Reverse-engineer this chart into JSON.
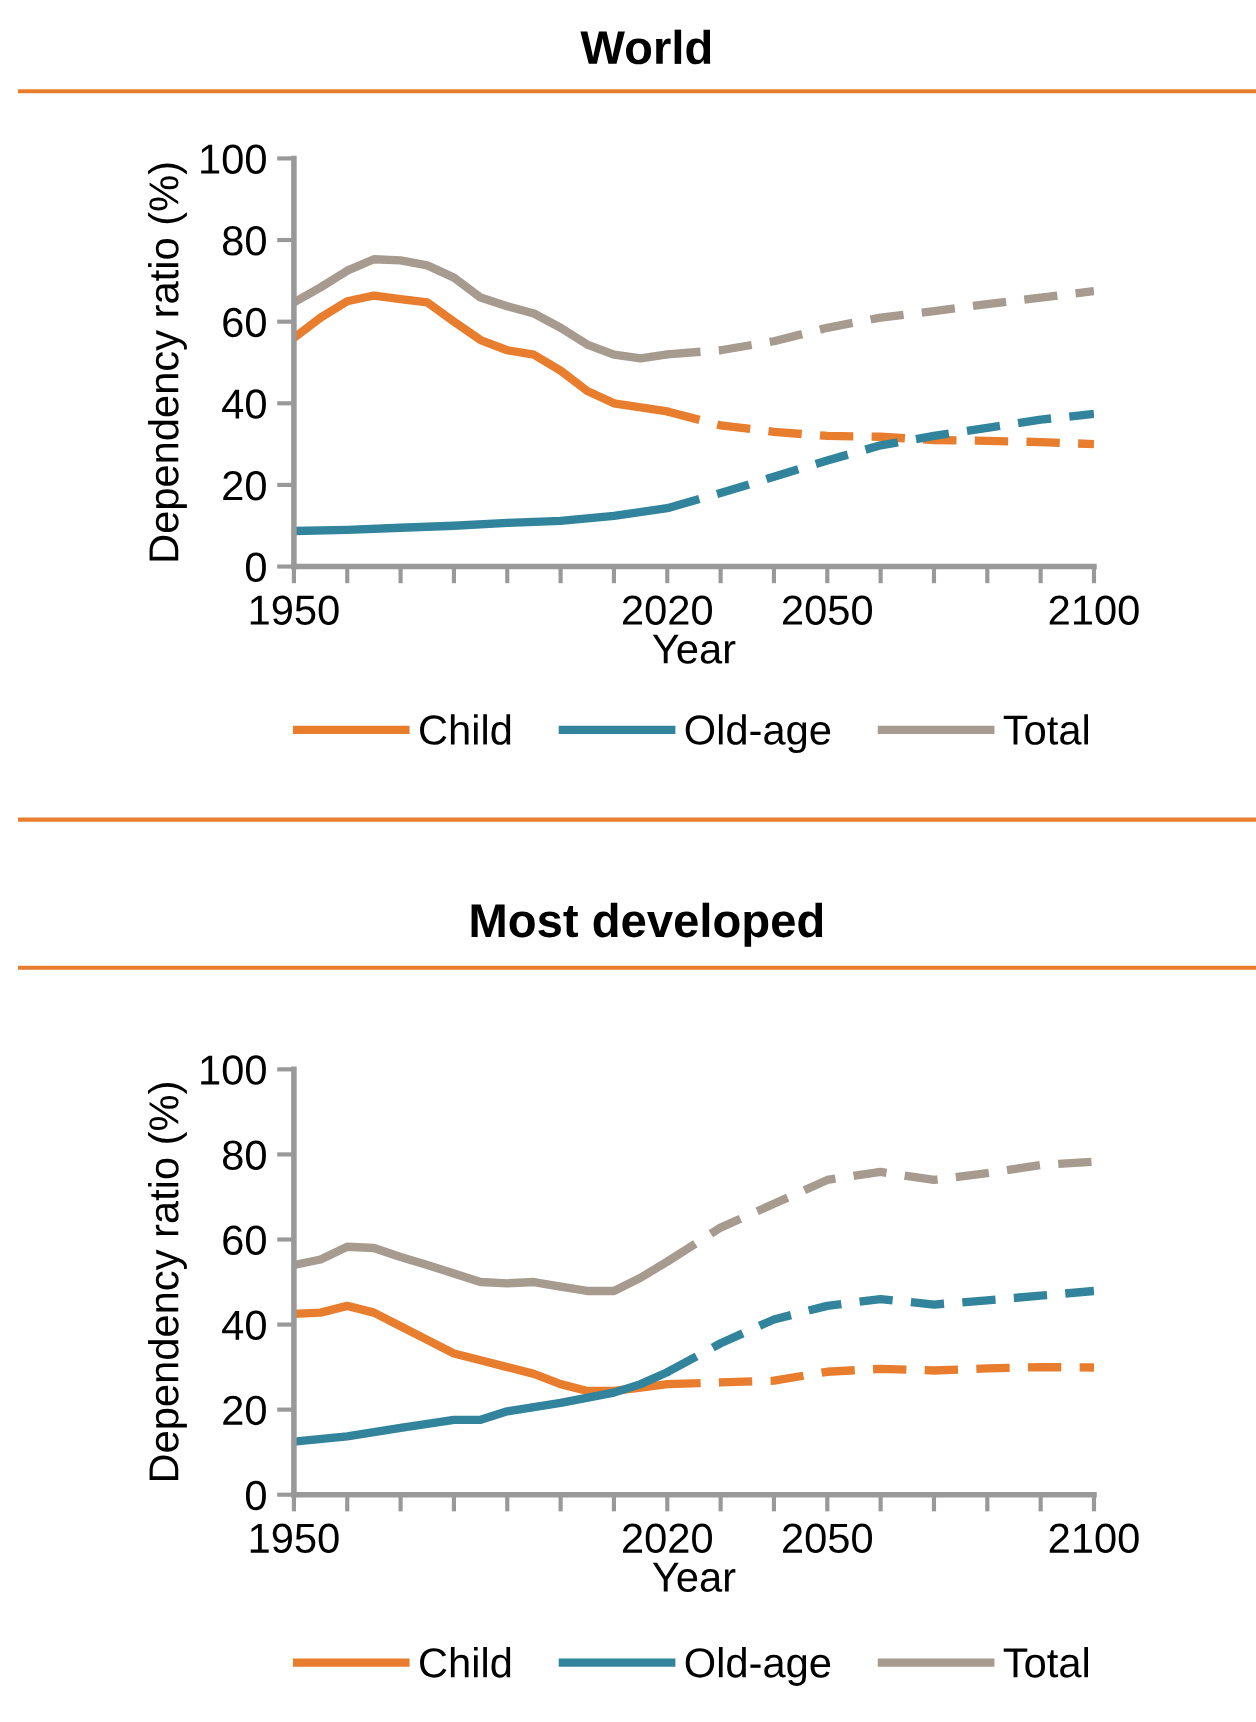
{
  "chart_data": [
    {
      "type": "line",
      "title": "World",
      "xlabel": "Year",
      "ylabel": "Dependency ratio (%)",
      "xlim": [
        1950,
        2100
      ],
      "xticks": [
        1950,
        {
          "value": 1960,
          "label": null
        },
        {
          "value": 1970,
          "label": null
        },
        {
          "value": 1980,
          "label": null
        },
        {
          "value": 1990,
          "label": null
        },
        {
          "value": 2000,
          "label": null
        },
        {
          "value": 2010,
          "label": null
        },
        2020,
        {
          "value": 2030,
          "label": null
        },
        {
          "value": 2040,
          "label": null
        },
        2050,
        {
          "value": 2060,
          "label": null
        },
        {
          "value": 2070,
          "label": null
        },
        {
          "value": 2080,
          "label": null
        },
        {
          "value": 2090,
          "label": null
        },
        2100
      ],
      "ylim": [
        0,
        100
      ],
      "yticks": [
        0,
        20,
        40,
        60,
        80,
        100
      ],
      "grid": false,
      "legend": "bottom",
      "marker": "none",
      "series": [
        {
          "name": "Child",
          "color": "#e87d2e",
          "line_style": "solid",
          "x": [
            1950,
            1955,
            1960,
            1965,
            1970,
            1975,
            1980,
            1985,
            1990,
            1995,
            2000,
            2005,
            2010,
            2015,
            2020
          ],
          "values": [
            56,
            61,
            65,
            66.4,
            65.5,
            64.7,
            60,
            55.5,
            53,
            51.9,
            48,
            43,
            40,
            39,
            38
          ]
        },
        {
          "color": "#e87d2e",
          "line_style": "dashed",
          "x": [
            2020,
            2030,
            2040,
            2050,
            2060,
            2070,
            2080,
            2090,
            2100
          ],
          "values": [
            38,
            34.6,
            33,
            32,
            31.8,
            31,
            30.8,
            30.5,
            30
          ]
        },
        {
          "name": "Old-age",
          "color": "#31849b",
          "line_style": "solid",
          "x": [
            1950,
            1960,
            1970,
            1980,
            1990,
            2000,
            2010,
            2020
          ],
          "values": [
            8.7,
            9,
            9.5,
            10,
            10.7,
            11.2,
            12.4,
            14.3
          ]
        },
        {
          "color": "#31849b",
          "line_style": "dashed",
          "x": [
            2020,
            2030,
            2040,
            2050,
            2060,
            2070,
            2080,
            2090,
            2100
          ],
          "values": [
            14.3,
            18,
            22,
            26,
            29.7,
            32,
            34,
            36,
            37.4
          ]
        },
        {
          "name": "Total",
          "color": "#a69b8e",
          "line_style": "solid",
          "x": [
            1950,
            1955,
            1960,
            1965,
            1970,
            1975,
            1980,
            1985,
            1990,
            1995,
            2000,
            2005,
            2010,
            2015,
            2020
          ],
          "values": [
            64.7,
            68.4,
            72.5,
            75.3,
            75,
            73.8,
            70.8,
            65.9,
            63.8,
            62,
            58.5,
            54.4,
            51.9,
            51,
            52
          ]
        },
        {
          "color": "#a69b8e",
          "line_style": "dashed",
          "x": [
            2020,
            2030,
            2040,
            2050,
            2060,
            2070,
            2080,
            2090,
            2100
          ],
          "values": [
            52,
            53,
            55.2,
            58.5,
            61,
            62.6,
            64.3,
            65.9,
            67.5
          ]
        }
      ]
    },
    {
      "type": "line",
      "title": "Most developed",
      "xlabel": "Year",
      "ylabel": "Dependency ratio (%)",
      "xlim": [
        1950,
        2100
      ],
      "xticks": [
        1950,
        {
          "value": 1960,
          "label": null
        },
        {
          "value": 1970,
          "label": null
        },
        {
          "value": 1980,
          "label": null
        },
        {
          "value": 1990,
          "label": null
        },
        {
          "value": 2000,
          "label": null
        },
        {
          "value": 2010,
          "label": null
        },
        2020,
        {
          "value": 2030,
          "label": null
        },
        {
          "value": 2040,
          "label": null
        },
        2050,
        {
          "value": 2060,
          "label": null
        },
        {
          "value": 2070,
          "label": null
        },
        {
          "value": 2080,
          "label": null
        },
        {
          "value": 2090,
          "label": null
        },
        2100
      ],
      "ylim": [
        0,
        100
      ],
      "yticks": [
        0,
        20,
        40,
        60,
        80,
        100
      ],
      "grid": false,
      "legend": "bottom",
      "marker": "none",
      "series": [
        {
          "name": "Child",
          "color": "#e87d2e",
          "line_style": "solid",
          "x": [
            1950,
            1955,
            1960,
            1965,
            1970,
            1975,
            1980,
            1985,
            1990,
            1995,
            2000,
            2005,
            2010,
            2015,
            2020
          ],
          "values": [
            42.5,
            42.8,
            44.4,
            42.8,
            39.6,
            36.4,
            33.2,
            31.6,
            30,
            28.4,
            26,
            24.4,
            24.4,
            25.2,
            26
          ]
        },
        {
          "color": "#e87d2e",
          "line_style": "dashed",
          "x": [
            2020,
            2030,
            2040,
            2050,
            2060,
            2070,
            2080,
            2090,
            2100
          ],
          "values": [
            26,
            26.4,
            26.8,
            28.9,
            29.6,
            29.2,
            29.7,
            30,
            29.9
          ]
        },
        {
          "name": "Old-age",
          "color": "#31849b",
          "line_style": "solid",
          "x": [
            1950,
            1960,
            1970,
            1980,
            1985,
            1990,
            2000,
            2010,
            2015,
            2020
          ],
          "values": [
            12.5,
            13.7,
            15.7,
            17.6,
            17.6,
            19.6,
            21.6,
            24,
            26,
            28.8
          ]
        },
        {
          "color": "#31849b",
          "line_style": "dashed",
          "x": [
            2020,
            2030,
            2040,
            2050,
            2060,
            2070,
            2080,
            2090,
            2100
          ],
          "values": [
            28.8,
            35.6,
            41.2,
            44.4,
            46,
            44.7,
            45.7,
            46.8,
            47.9
          ]
        },
        {
          "name": "Total",
          "color": "#a69b8e",
          "line_style": "solid",
          "x": [
            1950,
            1955,
            1960,
            1965,
            1970,
            1975,
            1980,
            1985,
            1990,
            1995,
            2000,
            2005,
            2010,
            2015,
            2020
          ],
          "values": [
            54,
            55.3,
            58.3,
            58,
            55.9,
            54,
            52,
            50,
            49.7,
            50,
            48.9,
            47.9,
            47.9,
            51,
            54.8
          ]
        },
        {
          "color": "#a69b8e",
          "line_style": "dashed",
          "x": [
            2020,
            2030,
            2040,
            2050,
            2060,
            2070,
            2080,
            2090,
            2100
          ],
          "values": [
            54.8,
            62.8,
            68.4,
            74,
            75.9,
            74,
            75.6,
            77.5,
            78.3
          ]
        }
      ]
    }
  ]
}
